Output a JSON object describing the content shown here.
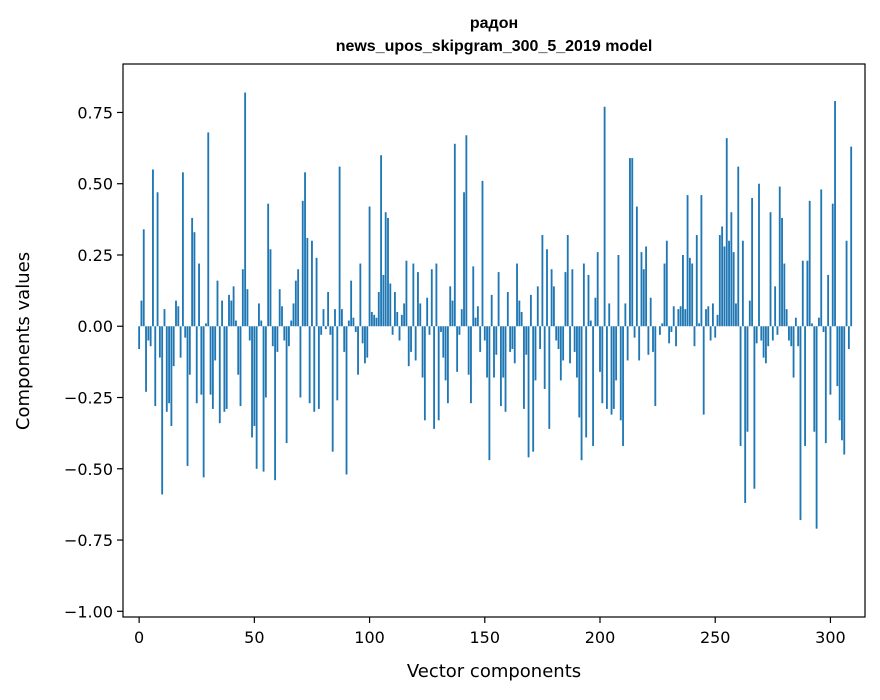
{
  "chart_data": {
    "type": "bar",
    "title": "радон",
    "subtitle": "news_upos_skipgram_300_5_2019 model",
    "xlabel": "Vector components",
    "ylabel": "Components values",
    "xlim": [
      -7,
      315
    ],
    "ylim": [
      -1.02,
      0.92
    ],
    "xticks": [
      0,
      50,
      100,
      150,
      200,
      250,
      300
    ],
    "yticks": [
      -1.0,
      -0.75,
      -0.5,
      -0.25,
      0.0,
      0.25,
      0.5,
      0.75
    ],
    "ytick_labels": [
      "−1.00",
      "−0.75",
      "−0.50",
      "−0.25",
      "0.00",
      "0.25",
      "0.50",
      "0.75"
    ],
    "bar_color": "#1f77b4",
    "grid": false,
    "values": [
      -0.08,
      0.09,
      0.34,
      -0.23,
      -0.05,
      -0.07,
      0.55,
      -0.28,
      0.47,
      -0.11,
      -0.59,
      0.06,
      -0.3,
      -0.27,
      -0.35,
      -0.14,
      0.09,
      0.07,
      -0.11,
      0.54,
      -0.04,
      -0.49,
      -0.17,
      0.38,
      0.33,
      -0.27,
      0.22,
      -0.24,
      -0.53,
      0.01,
      0.68,
      -0.24,
      -0.29,
      -0.12,
      0.16,
      -0.34,
      0.09,
      -0.3,
      -0.29,
      0.11,
      0.09,
      0.14,
      0.02,
      -0.17,
      -0.28,
      0.2,
      0.82,
      0.13,
      -0.05,
      -0.39,
      -0.35,
      -0.5,
      0.08,
      0.02,
      -0.51,
      -0.25,
      0.43,
      0.27,
      -0.07,
      -0.54,
      -0.09,
      0.13,
      0.07,
      -0.05,
      -0.41,
      -0.07,
      0.02,
      0.08,
      0.16,
      0.2,
      -0.25,
      0.44,
      0.54,
      0.31,
      -0.27,
      0.3,
      -0.3,
      0.24,
      -0.29,
      -0.03,
      0.06,
      -0.01,
      0.12,
      -0.03,
      -0.44,
      0.06,
      -0.26,
      0.56,
      0.06,
      -0.09,
      -0.52,
      0.02,
      0.16,
      0.03,
      -0.02,
      -0.17,
      0.22,
      -0.06,
      -0.13,
      -0.11,
      0.42,
      0.05,
      0.04,
      0.03,
      0.12,
      0.6,
      0.18,
      0.4,
      0.38,
      0.15,
      -0.03,
      0.12,
      0.05,
      -0.05,
      0.04,
      0.08,
      0.23,
      -0.14,
      -0.09,
      0.22,
      -0.12,
      0.19,
      0.08,
      -0.18,
      -0.33,
      0.1,
      -0.03,
      0.2,
      -0.36,
      0.22,
      -0.33,
      -0.02,
      -0.11,
      -0.19,
      -0.27,
      0.14,
      0.09,
      0.64,
      -0.16,
      -0.03,
      0.06,
      0.47,
      0.67,
      -0.17,
      -0.27,
      0.21,
      0.03,
      0.07,
      -0.09,
      0.51,
      -0.05,
      -0.18,
      -0.47,
      0.11,
      -0.18,
      -0.1,
      0.19,
      -0.28,
      -0.18,
      -0.3,
      0.12,
      -0.09,
      -0.08,
      -0.13,
      0.22,
      0.09,
      0.05,
      -0.29,
      -0.1,
      -0.46,
      0.11,
      -0.44,
      -0.19,
      0.14,
      -0.08,
      0.32,
      -0.22,
      0.27,
      -0.36,
      0.2,
      0.14,
      -0.05,
      -0.08,
      -0.19,
      -0.12,
      0.19,
      0.32,
      -0.13,
      0.2,
      -0.09,
      -0.18,
      -0.32,
      -0.47,
      0.22,
      -0.39,
      0.18,
      0.02,
      -0.42,
      0.1,
      0.26,
      -0.16,
      -0.27,
      0.77,
      -0.29,
      0.08,
      -0.31,
      -0.29,
      -0.19,
      0.25,
      -0.33,
      -0.42,
      0.08,
      -0.12,
      0.59,
      0.59,
      -0.04,
      0.42,
      -0.12,
      0.26,
      0.2,
      0.28,
      -0.1,
      0.1,
      -0.09,
      -0.28,
      0.0,
      -0.03,
      0.01,
      0.22,
      0.3,
      -0.06,
      -0.02,
      0.07,
      -0.07,
      0.06,
      0.07,
      0.25,
      0.06,
      0.46,
      0.24,
      0.22,
      -0.07,
      0.32,
      0.01,
      0.46,
      -0.31,
      0.06,
      0.07,
      -0.05,
      0.08,
      -0.04,
      0.04,
      0.32,
      0.35,
      0.28,
      0.66,
      0.3,
      0.4,
      0.26,
      0.08,
      0.56,
      -0.42,
      0.3,
      -0.62,
      -0.37,
      0.09,
      0.45,
      -0.57,
      -0.06,
      0.5,
      -0.05,
      -0.11,
      -0.13,
      -0.07,
      0.4,
      -0.05,
      0.14,
      -0.03,
      0.49,
      0.38,
      0.22,
      0.06,
      -0.05,
      -0.07,
      -0.18,
      0.03,
      -0.07,
      -0.68,
      0.23,
      -0.42,
      0.23,
      0.44,
      0.01,
      -0.37,
      -0.71,
      0.03,
      0.48,
      -0.02,
      -0.41,
      0.18,
      -0.24,
      0.43,
      0.79,
      -0.21,
      -0.33,
      -0.4,
      -0.45,
      0.3,
      -0.08,
      0.63
    ]
  }
}
